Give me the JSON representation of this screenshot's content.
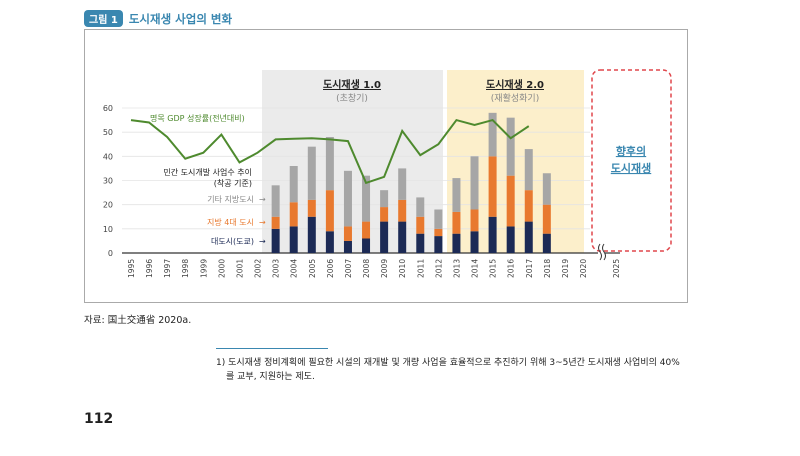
{
  "figure": {
    "badge": "그림 1",
    "title": "도시재생 사업의 변화"
  },
  "chart_data": {
    "type": "bar+line",
    "years": [
      "1995",
      "1996",
      "1997",
      "1998",
      "1999",
      "2000",
      "2001",
      "2002",
      "2003",
      "2004",
      "2005",
      "2006",
      "2007",
      "2008",
      "2009",
      "2010",
      "2011",
      "2012",
      "2013",
      "2014",
      "2015",
      "2016",
      "2017",
      "2018",
      "2019",
      "2020",
      "2025"
    ],
    "ylim": [
      0,
      60
    ],
    "yticks": [
      0,
      10,
      20,
      30,
      40,
      50,
      60
    ],
    "grid": true,
    "bar_title": "민간 도시개발 사업수 추이",
    "bar_subtitle": "(착공 기준)",
    "stacked_series": [
      {
        "name": "대도시(도쿄)",
        "color": "#1c2a55",
        "values": [
          null,
          null,
          null,
          null,
          null,
          null,
          null,
          null,
          10,
          11,
          15,
          9,
          5,
          6,
          13,
          13,
          8,
          7,
          8,
          9,
          15,
          11,
          13,
          8,
          null,
          null,
          null
        ]
      },
      {
        "name": "지방 4대 도시",
        "color": "#e8792f",
        "values": [
          null,
          null,
          null,
          null,
          null,
          null,
          null,
          null,
          5,
          10,
          7,
          17,
          6,
          7,
          6,
          9,
          7,
          3,
          9,
          9,
          25,
          21,
          13,
          12,
          null,
          null,
          null
        ]
      },
      {
        "name": "기타 지방도시",
        "color": "#a6a6a6",
        "values": [
          null,
          null,
          null,
          null,
          null,
          null,
          null,
          null,
          13,
          15,
          22,
          22,
          23,
          19,
          7,
          13,
          8,
          8,
          14,
          22,
          18,
          24,
          17,
          13,
          null,
          null,
          null
        ]
      }
    ],
    "line_series": {
      "name": "명목 GDP 성장률(전년대비)",
      "color": "#4e8a2e",
      "values": [
        55,
        54,
        48,
        39,
        41.5,
        49,
        37.5,
        41.5,
        47,
        47.3,
        47.5,
        47,
        46.3,
        29,
        31.5,
        50.5,
        40.5,
        45,
        55,
        53,
        55,
        47.5,
        52.5,
        null,
        null,
        null,
        null
      ]
    },
    "periods": [
      {
        "title": "도시재생 1.0",
        "subtitle": "(초창기)",
        "from": "2002",
        "to": "2012",
        "color": "#ebebeb"
      },
      {
        "title": "도시재생 2.0",
        "subtitle": "(재활성화기)",
        "from": "2013",
        "to": "2020",
        "color": "#fcefcb"
      }
    ],
    "future": {
      "line1": "향후의",
      "line2": "도시재생",
      "color": "#3a87b0",
      "border": "#e0474c"
    },
    "arrow": "→"
  },
  "source": "자료: 国土交通省 2020a.",
  "footnote": {
    "line1": "1) 도시재생 정비계획에 필요한 시설의 재개발 및 개량 사업을 효율적으로 추진하기 위해 3~5년간 도시재생 사업비의 40%",
    "line2": "를 교부, 지원하는 제도."
  },
  "page_number": "112"
}
